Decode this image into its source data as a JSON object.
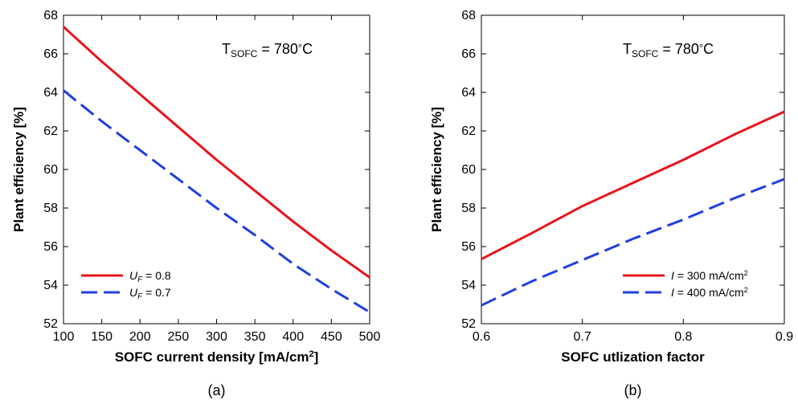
{
  "chart_data": [
    {
      "type": "line",
      "panel_label": "(a)",
      "xlabel": "SOFC current density [mA/cm",
      "xlabel_sup": "2",
      "xlabel_end": "]",
      "ylabel": "Plant efficiency [%]",
      "xlim": [
        100,
        500
      ],
      "ylim": [
        52,
        68
      ],
      "xticks": [
        100,
        150,
        200,
        250,
        300,
        350,
        400,
        450,
        500
      ],
      "yticks": [
        52,
        54,
        56,
        58,
        60,
        62,
        64,
        66,
        68
      ],
      "annotation": {
        "main": "T",
        "sub": "SOFC",
        "rest": " = 780",
        "deg": "°",
        "unit": "C"
      },
      "legend_position": "bottom-left",
      "series": [
        {
          "name_var": "U",
          "name_sub": "F",
          "name_rest": " = 0.8",
          "color": "#e8141b",
          "dash": "solid",
          "x": [
            100,
            150,
            200,
            250,
            300,
            350,
            400,
            450,
            500
          ],
          "values": [
            67.4,
            65.6,
            63.9,
            62.2,
            60.5,
            58.9,
            57.3,
            55.8,
            54.4
          ]
        },
        {
          "name_var": "U",
          "name_sub": "F",
          "name_rest": " = 0.7",
          "color": "#1f3fe0",
          "dash": "dashed",
          "x": [
            100,
            150,
            200,
            250,
            300,
            350,
            400,
            450,
            500
          ],
          "values": [
            64.1,
            62.5,
            61.0,
            59.5,
            58.0,
            56.6,
            55.1,
            53.8,
            52.6
          ]
        }
      ]
    },
    {
      "type": "line",
      "panel_label": "(b)",
      "xlabel": "SOFC utlization factor",
      "ylabel": "Plant efficiency [%]",
      "xlim": [
        0.6,
        0.9
      ],
      "ylim": [
        52,
        68
      ],
      "xticks": [
        0.6,
        0.7,
        0.8,
        0.9
      ],
      "yticks": [
        52,
        54,
        56,
        58,
        60,
        62,
        64,
        66,
        68
      ],
      "annotation": {
        "main": "T",
        "sub": "SOFC",
        "rest": " = 780",
        "deg": "°",
        "unit": "C"
      },
      "legend_position": "bottom-right",
      "series": [
        {
          "name_var": "I",
          "name_rest": " = 300 mA/cm",
          "name_sup": "2",
          "color": "#e8141b",
          "dash": "solid",
          "x": [
            0.6,
            0.65,
            0.7,
            0.75,
            0.8,
            0.85,
            0.9
          ],
          "values": [
            55.35,
            56.7,
            58.1,
            59.3,
            60.5,
            61.8,
            63.0
          ]
        },
        {
          "name_var": "I",
          "name_rest": " = 400 mA/cm",
          "name_sup": "2",
          "color": "#1f3fe0",
          "dash": "dashed",
          "x": [
            0.6,
            0.65,
            0.7,
            0.75,
            0.8,
            0.85,
            0.9
          ],
          "values": [
            52.95,
            54.2,
            55.3,
            56.4,
            57.4,
            58.5,
            59.5
          ]
        }
      ]
    }
  ]
}
